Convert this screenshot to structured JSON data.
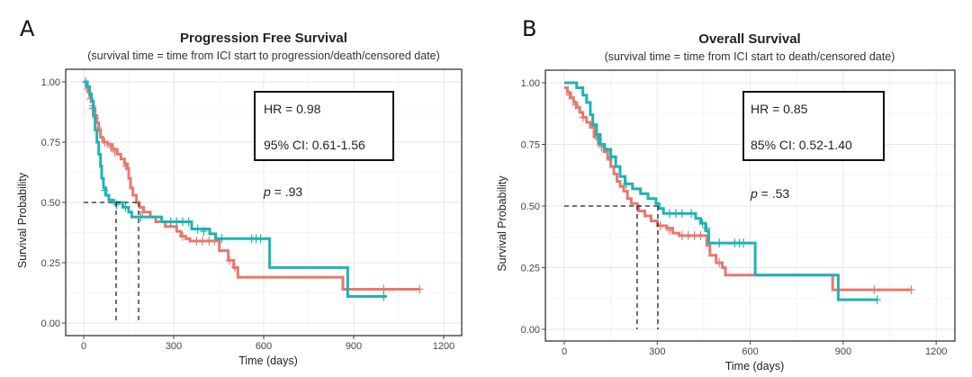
{
  "chart_data": [
    {
      "type": "line",
      "panel": "A",
      "title": "Progression Free Survival",
      "subtitle": "(survival time = time from ICI start to progression/death/censored date)",
      "xlabel": "Time (days)",
      "ylabel": "Survival Probability",
      "xlim": [
        -50,
        1260
      ],
      "ylim": [
        -0.05,
        1.03
      ],
      "xticks": [
        0,
        300,
        600,
        900,
        1200
      ],
      "yticks": [
        0.0,
        0.25,
        0.5,
        0.75,
        1.0
      ],
      "xtick_labels": [
        "0",
        "300",
        "600",
        "900",
        "1200"
      ],
      "ytick_labels": [
        "0.00",
        "0.25",
        "0.50",
        "0.75",
        "1.00"
      ],
      "grid": true,
      "stats": {
        "hr": "HR = 0.98",
        "ci": "95% CI: 0.61-1.56",
        "p_symbol": "p",
        "p_value": " = .93"
      },
      "medians": [
        108,
        183
      ],
      "series": [
        {
          "name": "group-red",
          "color": "#e8786f",
          "steps": [
            [
              0,
              1.0
            ],
            [
              8,
              0.98
            ],
            [
              14,
              0.96
            ],
            [
              20,
              0.94
            ],
            [
              26,
              0.92
            ],
            [
              32,
              0.89
            ],
            [
              38,
              0.86
            ],
            [
              44,
              0.83
            ],
            [
              50,
              0.8
            ],
            [
              56,
              0.77
            ],
            [
              64,
              0.75
            ],
            [
              80,
              0.74
            ],
            [
              96,
              0.72
            ],
            [
              112,
              0.7
            ],
            [
              124,
              0.68
            ],
            [
              136,
              0.66
            ],
            [
              146,
              0.64
            ],
            [
              150,
              0.6
            ],
            [
              156,
              0.56
            ],
            [
              164,
              0.53
            ],
            [
              176,
              0.5
            ],
            [
              186,
              0.48
            ],
            [
              200,
              0.46
            ],
            [
              222,
              0.44
            ],
            [
              240,
              0.42
            ],
            [
              272,
              0.4
            ],
            [
              310,
              0.38
            ],
            [
              324,
              0.36
            ],
            [
              340,
              0.35
            ],
            [
              354,
              0.34
            ],
            [
              452,
              0.3
            ],
            [
              482,
              0.26
            ],
            [
              500,
              0.23
            ],
            [
              514,
              0.19
            ],
            [
              864,
              0.14
            ],
            [
              1120,
              0.14
            ]
          ],
          "censored": [
            [
              12,
              0.97
            ],
            [
              22,
              0.93
            ],
            [
              30,
              0.9
            ],
            [
              40,
              0.85
            ],
            [
              48,
              0.81
            ],
            [
              70,
              0.75
            ],
            [
              90,
              0.73
            ],
            [
              104,
              0.71
            ],
            [
              140,
              0.65
            ],
            [
              196,
              0.46
            ],
            [
              330,
              0.36
            ],
            [
              376,
              0.34
            ],
            [
              396,
              0.34
            ],
            [
              418,
              0.34
            ],
            [
              436,
              0.34
            ],
            [
              486,
              0.26
            ],
            [
              504,
              0.23
            ],
            [
              1000,
              0.14
            ],
            [
              1120,
              0.14
            ]
          ]
        },
        {
          "name": "group-teal",
          "color": "#1fb3b3",
          "steps": [
            [
              0,
              1.0
            ],
            [
              12,
              0.98
            ],
            [
              20,
              0.95
            ],
            [
              26,
              0.92
            ],
            [
              32,
              0.86
            ],
            [
              38,
              0.8
            ],
            [
              44,
              0.75
            ],
            [
              50,
              0.7
            ],
            [
              56,
              0.65
            ],
            [
              60,
              0.6
            ],
            [
              66,
              0.56
            ],
            [
              74,
              0.53
            ],
            [
              84,
              0.51
            ],
            [
              100,
              0.5
            ],
            [
              130,
              0.48
            ],
            [
              150,
              0.46
            ],
            [
              160,
              0.44
            ],
            [
              260,
              0.42
            ],
            [
              360,
              0.39
            ],
            [
              420,
              0.37
            ],
            [
              440,
              0.35
            ],
            [
              620,
              0.23
            ],
            [
              880,
              0.11
            ],
            [
              1010,
              0.11
            ]
          ],
          "censored": [
            [
              6,
              1.0
            ],
            [
              30,
              0.89
            ],
            [
              70,
              0.55
            ],
            [
              110,
              0.49
            ],
            [
              140,
              0.48
            ],
            [
              190,
              0.44
            ],
            [
              290,
              0.42
            ],
            [
              310,
              0.42
            ],
            [
              330,
              0.42
            ],
            [
              350,
              0.42
            ],
            [
              380,
              0.39
            ],
            [
              400,
              0.38
            ],
            [
              460,
              0.35
            ],
            [
              560,
              0.35
            ],
            [
              575,
              0.35
            ],
            [
              590,
              0.35
            ],
            [
              1000,
              0.11
            ]
          ]
        }
      ]
    },
    {
      "type": "line",
      "panel": "B",
      "title": "Overall Survival",
      "subtitle": "(survival time = time from ICI start to death/censored date)",
      "xlabel": "Time (days)",
      "ylabel": "Survival Probability",
      "xlim": [
        -60,
        1260
      ],
      "ylim": [
        -0.05,
        1.03
      ],
      "xticks": [
        0,
        300,
        600,
        900,
        1200
      ],
      "yticks": [
        0.0,
        0.25,
        0.5,
        0.75,
        1.0
      ],
      "xtick_labels": [
        "0",
        "300",
        "600",
        "900",
        "1200"
      ],
      "ytick_labels": [
        "0.00",
        "0.25",
        "0.50",
        "0.75",
        "1.00"
      ],
      "grid": true,
      "stats": {
        "hr": "HR = 0.85",
        "ci": "85% CI: 0.52-1.40",
        "p_symbol": "p",
        "p_value": " = .53"
      },
      "medians": [
        235,
        302
      ],
      "series": [
        {
          "name": "group-red",
          "color": "#e8786f",
          "steps": [
            [
              0,
              0.98
            ],
            [
              10,
              0.96
            ],
            [
              20,
              0.94
            ],
            [
              30,
              0.92
            ],
            [
              40,
              0.9
            ],
            [
              50,
              0.88
            ],
            [
              60,
              0.86
            ],
            [
              72,
              0.84
            ],
            [
              84,
              0.82
            ],
            [
              96,
              0.78
            ],
            [
              110,
              0.75
            ],
            [
              128,
              0.72
            ],
            [
              140,
              0.69
            ],
            [
              150,
              0.66
            ],
            [
              160,
              0.63
            ],
            [
              170,
              0.6
            ],
            [
              180,
              0.58
            ],
            [
              192,
              0.56
            ],
            [
              204,
              0.53
            ],
            [
              216,
              0.51
            ],
            [
              236,
              0.5
            ],
            [
              240,
              0.48
            ],
            [
              260,
              0.46
            ],
            [
              280,
              0.44
            ],
            [
              300,
              0.42
            ],
            [
              330,
              0.41
            ],
            [
              350,
              0.39
            ],
            [
              370,
              0.38
            ],
            [
              460,
              0.34
            ],
            [
              470,
              0.3
            ],
            [
              490,
              0.27
            ],
            [
              510,
              0.25
            ],
            [
              520,
              0.22
            ],
            [
              866,
              0.16
            ],
            [
              1120,
              0.16
            ]
          ],
          "censored": [
            [
              16,
              0.95
            ],
            [
              36,
              0.91
            ],
            [
              60,
              0.86
            ],
            [
              120,
              0.74
            ],
            [
              138,
              0.72
            ],
            [
              310,
              0.42
            ],
            [
              340,
              0.4
            ],
            [
              380,
              0.38
            ],
            [
              400,
              0.38
            ],
            [
              420,
              0.38
            ],
            [
              440,
              0.38
            ],
            [
              500,
              0.27
            ],
            [
              1000,
              0.16
            ],
            [
              1120,
              0.16
            ]
          ]
        },
        {
          "name": "group-teal",
          "color": "#1fb3b3",
          "steps": [
            [
              0,
              1.0
            ],
            [
              40,
              0.98
            ],
            [
              60,
              0.95
            ],
            [
              72,
              0.92
            ],
            [
              84,
              0.87
            ],
            [
              92,
              0.83
            ],
            [
              104,
              0.79
            ],
            [
              116,
              0.75
            ],
            [
              130,
              0.73
            ],
            [
              150,
              0.7
            ],
            [
              166,
              0.66
            ],
            [
              180,
              0.62
            ],
            [
              196,
              0.59
            ],
            [
              220,
              0.57
            ],
            [
              246,
              0.55
            ],
            [
              270,
              0.53
            ],
            [
              296,
              0.51
            ],
            [
              306,
              0.49
            ],
            [
              320,
              0.47
            ],
            [
              424,
              0.45
            ],
            [
              440,
              0.43
            ],
            [
              456,
              0.4
            ],
            [
              466,
              0.35
            ],
            [
              616,
              0.22
            ],
            [
              884,
              0.12
            ],
            [
              1010,
              0.12
            ]
          ],
          "censored": [
            [
              110,
              0.77
            ],
            [
              150,
              0.7
            ],
            [
              200,
              0.59
            ],
            [
              340,
              0.47
            ],
            [
              360,
              0.47
            ],
            [
              380,
              0.47
            ],
            [
              410,
              0.47
            ],
            [
              446,
              0.43
            ],
            [
              460,
              0.41
            ],
            [
              500,
              0.35
            ],
            [
              550,
              0.35
            ],
            [
              565,
              0.35
            ],
            [
              578,
              0.35
            ],
            [
              1010,
              0.12
            ]
          ]
        }
      ]
    }
  ]
}
